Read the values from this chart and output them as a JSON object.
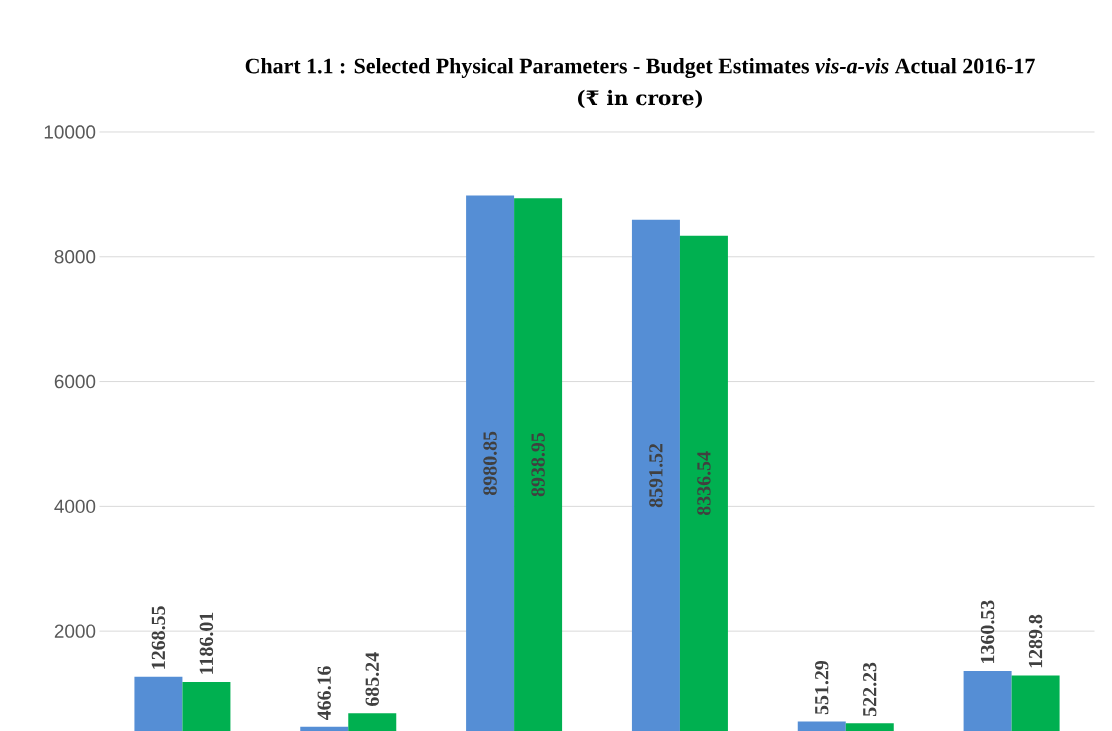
{
  "chart_data": {
    "type": "bar",
    "title": "Chart 1.1 : Selected Physical Parameters - Budget Estimates *vis-a-vis* Actual 2016-17",
    "subtitle": "(₹ in crore)",
    "categories": [
      null,
      null,
      null,
      null,
      null,
      null
    ],
    "series": [
      {
        "color": "#558ed5",
        "values": [
          1268.55,
          466.16,
          8980.85,
          8591.52,
          551.29,
          1360.53
        ]
      },
      {
        "color": "#00b050",
        "values": [
          1186.01,
          685.24,
          8938.95,
          8336.54,
          522.23,
          1289.8
        ]
      }
    ],
    "ylim": [
      400,
      10000
    ],
    "yticks": [
      2000,
      4000,
      6000,
      8000,
      10000
    ],
    "grid": "y",
    "data_labels": true
  }
}
